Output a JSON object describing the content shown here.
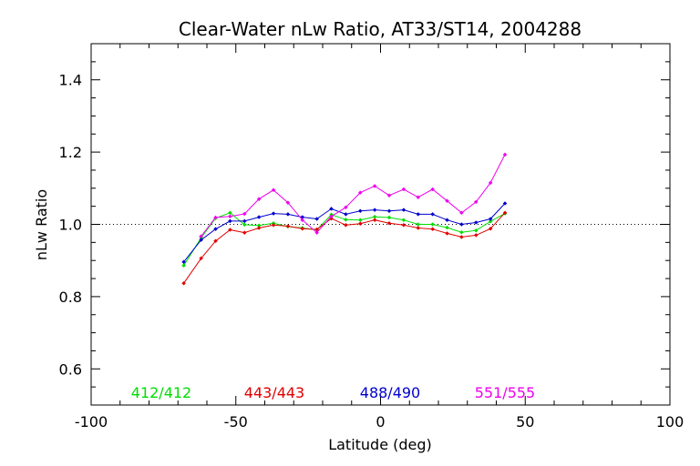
{
  "chart_data": {
    "type": "line",
    "title": "Clear-Water nLw Ratio, AT33/ST14, 2004288",
    "xlabel": "Latitude (deg)",
    "ylabel": "nLw Ratio",
    "xlim": [
      -100,
      100
    ],
    "ylim": [
      0.5,
      1.5
    ],
    "xticks": [
      -100,
      -50,
      0,
      50,
      100
    ],
    "yticks": [
      0.6,
      0.8,
      1.0,
      1.2,
      1.4
    ],
    "reference_line": 1.0,
    "grid": false,
    "series": [
      {
        "name": "412/412",
        "color": "#00dd00",
        "x": [
          -68,
          -62,
          -57,
          -52,
          -47,
          -42,
          -37,
          -32,
          -27,
          -22,
          -17,
          -12,
          -7,
          -2,
          3,
          8,
          13,
          18,
          23,
          28,
          33,
          38,
          43
        ],
        "y": [
          0.886,
          0.963,
          1.017,
          1.032,
          0.999,
          0.997,
          1.003,
          0.994,
          0.99,
          0.985,
          1.027,
          1.013,
          1.012,
          1.021,
          1.019,
          1.012,
          1.0,
          1.0,
          0.991,
          0.978,
          0.983,
          1.008,
          1.03
        ]
      },
      {
        "name": "443/443",
        "color": "#e00000",
        "x": [
          -68,
          -62,
          -57,
          -52,
          -47,
          -42,
          -37,
          -32,
          -27,
          -22,
          -17,
          -12,
          -7,
          -2,
          3,
          8,
          13,
          18,
          23,
          28,
          33,
          38,
          43
        ],
        "y": [
          0.837,
          0.906,
          0.954,
          0.985,
          0.977,
          0.99,
          0.998,
          0.995,
          0.988,
          0.986,
          1.016,
          0.998,
          1.002,
          1.012,
          1.003,
          0.998,
          0.99,
          0.987,
          0.975,
          0.965,
          0.97,
          0.988,
          1.032
        ]
      },
      {
        "name": "488/490",
        "color": "#0000cc",
        "x": [
          -68,
          -62,
          -57,
          -52,
          -47,
          -42,
          -37,
          -32,
          -27,
          -22,
          -17,
          -12,
          -7,
          -2,
          3,
          8,
          13,
          18,
          23,
          28,
          33,
          38,
          43
        ],
        "y": [
          0.896,
          0.957,
          0.987,
          1.009,
          1.009,
          1.02,
          1.03,
          1.028,
          1.02,
          1.015,
          1.043,
          1.028,
          1.037,
          1.04,
          1.037,
          1.04,
          1.028,
          1.028,
          1.012,
          1.0,
          1.005,
          1.015,
          1.058
        ]
      },
      {
        "name": "551/555",
        "color": "#ee00ee",
        "x": [
          -62,
          -57,
          -52,
          -47,
          -42,
          -37,
          -32,
          -27,
          -22,
          -17,
          -12,
          -7,
          -2,
          3,
          8,
          13,
          18,
          23,
          28,
          33,
          38,
          43
        ],
        "y": [
          0.967,
          1.019,
          1.022,
          1.029,
          1.07,
          1.095,
          1.06,
          1.012,
          0.977,
          1.022,
          1.047,
          1.088,
          1.106,
          1.08,
          1.097,
          1.075,
          1.097,
          1.065,
          1.032,
          1.062,
          1.115,
          1.193
        ]
      }
    ],
    "legend_placement": "bottom, inside plot"
  }
}
